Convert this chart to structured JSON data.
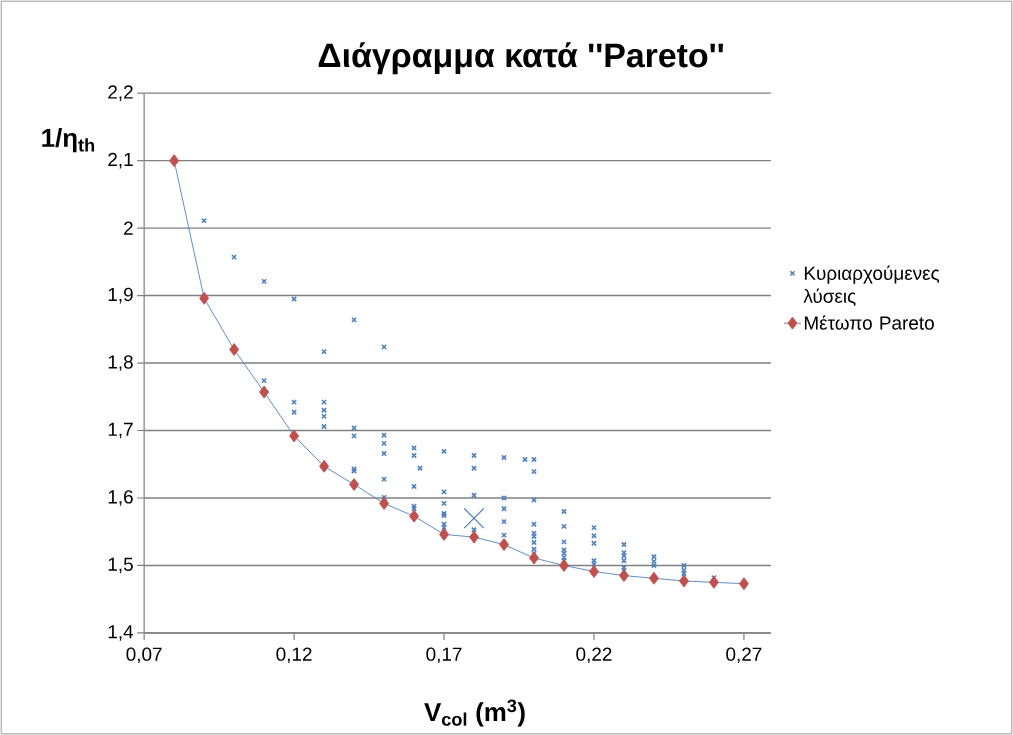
{
  "chart_data": {
    "type": "scatter",
    "title": "Διάγραμμα κατά ''Pareto''",
    "xlabel": "V$_{col}$ (m$^{3}$)",
    "ylabel": "1/η$_{th}$",
    "xlim": [
      0.07,
      0.279
    ],
    "ylim": [
      1.4,
      2.2
    ],
    "xticks": [
      {
        "value": 0.07,
        "label": "0,07"
      },
      {
        "value": 0.12,
        "label": "0,12"
      },
      {
        "value": 0.17,
        "label": "0,17"
      },
      {
        "value": 0.22,
        "label": "0,22"
      },
      {
        "value": 0.27,
        "label": "0,27"
      }
    ],
    "yticks": [
      {
        "value": 1.4,
        "label": "1,4"
      },
      {
        "value": 1.5,
        "label": "1,5"
      },
      {
        "value": 1.6,
        "label": "1,6"
      },
      {
        "value": 1.7,
        "label": "1,7"
      },
      {
        "value": 1.8,
        "label": "1,8"
      },
      {
        "value": 1.9,
        "label": "1,9"
      },
      {
        "value": 2.0,
        "label": "2"
      },
      {
        "value": 2.1,
        "label": "2,1"
      },
      {
        "value": 2.2,
        "label": "2,2"
      }
    ],
    "grid": "y",
    "legend": "right",
    "series": [
      {
        "name": "Κυριαρχούμενες λύσεις",
        "marker": "cross",
        "color": "#4f81bd",
        "x": [
          0.09,
          0.1,
          0.11,
          0.11,
          0.12,
          0.12,
          0.12,
          0.13,
          0.13,
          0.13,
          0.13,
          0.13,
          0.14,
          0.14,
          0.14,
          0.14,
          0.14,
          0.15,
          0.15,
          0.15,
          0.15,
          0.15,
          0.15,
          0.15,
          0.16,
          0.16,
          0.16,
          0.16,
          0.16,
          0.162,
          0.17,
          0.17,
          0.17,
          0.17,
          0.17,
          0.17,
          0.17,
          0.17,
          0.18,
          0.18,
          0.18,
          0.18,
          0.19,
          0.19,
          0.19,
          0.19,
          0.19,
          0.197,
          0.2,
          0.2,
          0.2,
          0.2,
          0.2,
          0.2,
          0.2,
          0.2,
          0.2,
          0.21,
          0.21,
          0.21,
          0.21,
          0.21,
          0.21,
          0.21,
          0.22,
          0.22,
          0.22,
          0.22,
          0.22,
          0.23,
          0.23,
          0.23,
          0.23,
          0.23,
          0.23,
          0.24,
          0.24,
          0.24,
          0.25,
          0.25,
          0.25,
          0.26
        ],
        "values": [
          2.011,
          1.957,
          1.921,
          1.774,
          1.895,
          1.742,
          1.727,
          1.817,
          1.742,
          1.73,
          1.721,
          1.706,
          1.864,
          1.704,
          1.692,
          1.643,
          1.64,
          1.824,
          1.693,
          1.681,
          1.666,
          1.628,
          1.601,
          1.596,
          1.674,
          1.663,
          1.617,
          1.588,
          1.584,
          1.644,
          1.669,
          1.609,
          1.592,
          1.577,
          1.574,
          1.561,
          1.556,
          1.548,
          1.663,
          1.644,
          1.604,
          1.553,
          1.66,
          1.6,
          1.584,
          1.565,
          1.545,
          1.657,
          1.657,
          1.639,
          1.597,
          1.561,
          1.548,
          1.543,
          1.534,
          1.524,
          1.518,
          1.58,
          1.558,
          1.535,
          1.523,
          1.518,
          1.512,
          1.507,
          1.556,
          1.544,
          1.533,
          1.507,
          1.502,
          1.531,
          1.519,
          1.514,
          1.507,
          1.497,
          1.492,
          1.513,
          1.506,
          1.5,
          1.5,
          1.493,
          1.488,
          1.482
        ]
      },
      {
        "name": "Μέτωπο Pareto",
        "type": "line",
        "marker": "diamond",
        "color": "#c0504d",
        "x": [
          0.08,
          0.09,
          0.1,
          0.11,
          0.12,
          0.13,
          0.14,
          0.15,
          0.16,
          0.17,
          0.18,
          0.19,
          0.2,
          0.21,
          0.22,
          0.23,
          0.24,
          0.25,
          0.26,
          0.27
        ],
        "values": [
          2.1,
          1.896,
          1.82,
          1.757,
          1.692,
          1.647,
          1.62,
          1.592,
          1.573,
          1.546,
          1.542,
          1.531,
          1.511,
          1.5,
          1.491,
          1.485,
          1.481,
          1.477,
          1.475,
          1.473
        ]
      },
      {
        "marker": "cross",
        "color": "#4f81bd",
        "x": [
          0.18
        ],
        "values": [
          1.57
        ]
      }
    ]
  }
}
